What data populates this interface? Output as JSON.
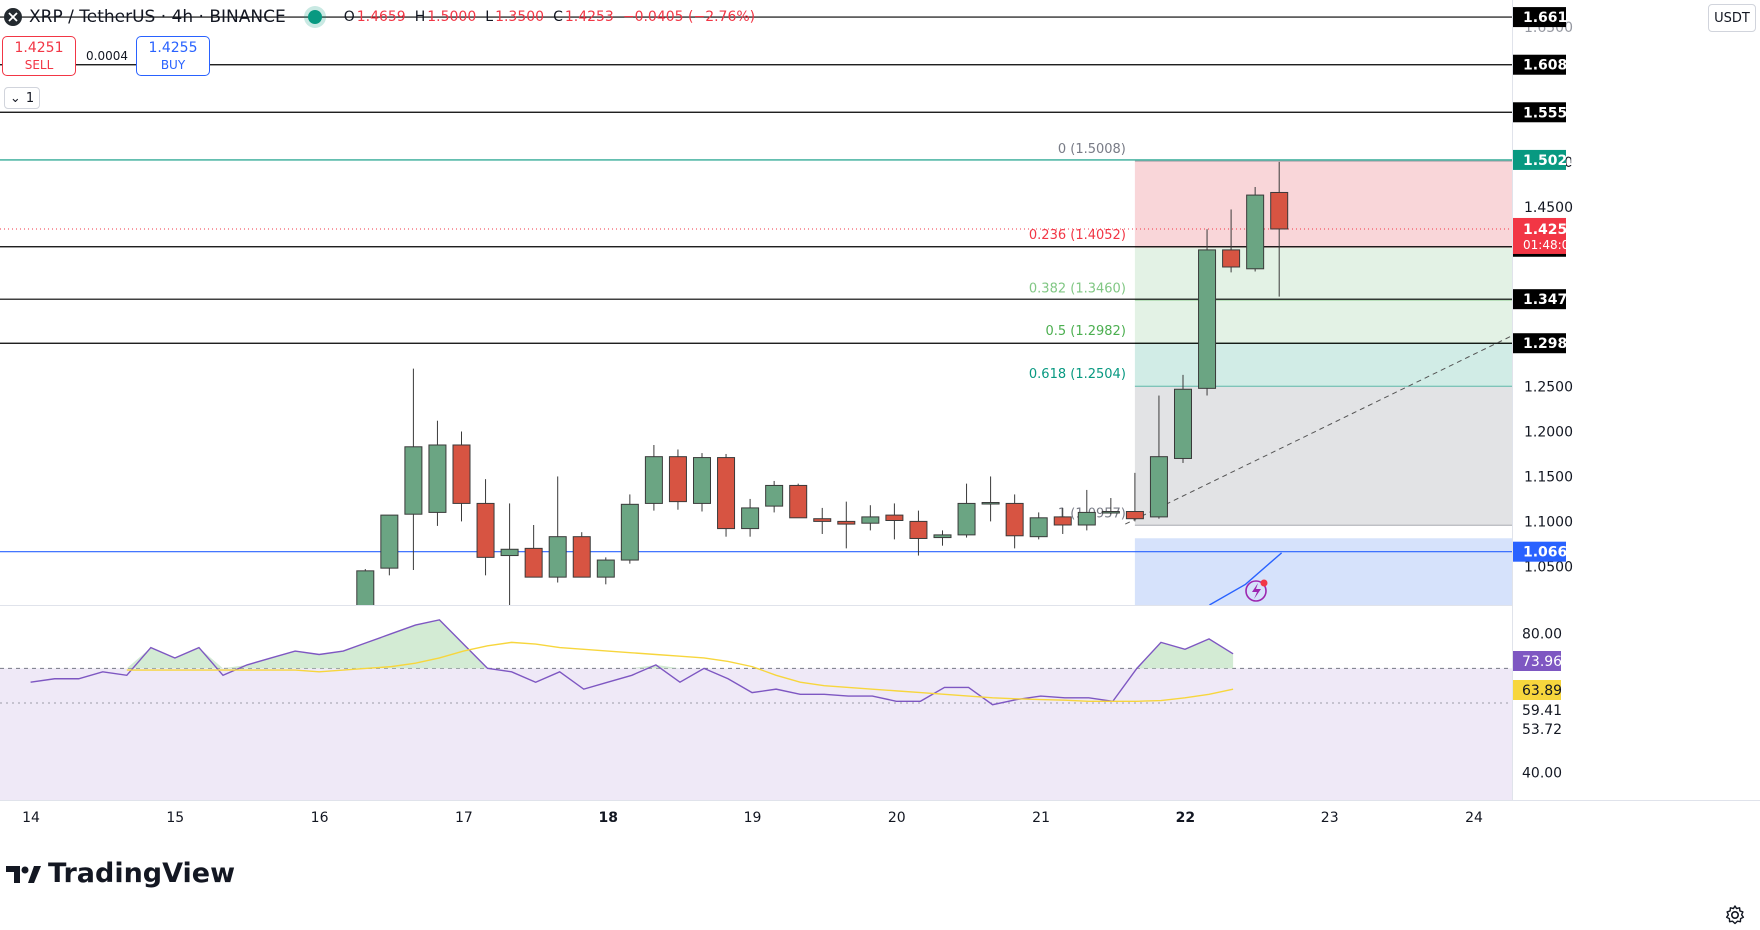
{
  "header": {
    "symbol": "XRP / TetherUS · 4h · BINANCE",
    "ohlc": [
      {
        "k": "O",
        "v": "1.4659"
      },
      {
        "k": "H",
        "v": "1.5000"
      },
      {
        "k": "L",
        "v": "1.3500"
      },
      {
        "k": "C",
        "v": "1.4253"
      },
      {
        "k": "",
        "v": "−0.0405 (−2.76%)"
      }
    ]
  },
  "trade": {
    "sell_price": "1.4251",
    "sell_label": "SELL",
    "buy_price": "1.4255",
    "buy_label": "BUY",
    "spread": "0.0004"
  },
  "indicators_toggle": "1",
  "currency": "USDT",
  "brand": "TradingView",
  "colors": {
    "up": "#6ba583",
    "down": "#d75442",
    "rsi": "#7e57c2",
    "rsi_ma": "#f7d63d",
    "fib_red": "#f9d6d9",
    "fib_green": "#e3f2e5",
    "fib_teal": "#d1ece6",
    "fib_grey": "#e2e3e5",
    "fib_blue": "#d6e2fb"
  },
  "chart_data": {
    "type": "candlestick",
    "instrument": "XRP / TetherUS",
    "interval": "4h",
    "x_labels": [
      {
        "label": "14",
        "x": 0.0
      },
      {
        "label": "15",
        "x": 6.0
      },
      {
        "label": "16",
        "x": 12.0
      },
      {
        "label": "17",
        "x": 18.0
      },
      {
        "label": "18",
        "x": 24.0
      },
      {
        "label": "19",
        "x": 30.0
      },
      {
        "label": "20",
        "x": 36.0
      },
      {
        "label": "21",
        "x": 42.0
      },
      {
        "label": "22",
        "x": 48.0
      },
      {
        "label": "23",
        "x": 54.0
      },
      {
        "label": "24",
        "x": 60.0
      }
    ],
    "bold_x_labels": [
      "18",
      "22"
    ],
    "price_axis": {
      "range": [
        1.007,
        1.68
      ],
      "ticks": [
        "1.0500",
        "1.1000",
        "1.1500",
        "1.2000",
        "1.2500",
        "1.4500",
        "1.5000"
      ],
      "hidden_ticks": [
        "1.6500"
      ]
    },
    "candles": [
      {
        "x": 13.9,
        "o": 1.005,
        "h": 1.047,
        "l": 1.0,
        "c": 1.045
      },
      {
        "x": 14.9,
        "o": 1.048,
        "h": 1.105,
        "l": 1.04,
        "c": 1.107
      },
      {
        "x": 15.9,
        "o": 1.108,
        "h": 1.27,
        "l": 1.046,
        "c": 1.183
      },
      {
        "x": 16.9,
        "o": 1.11,
        "h": 1.212,
        "l": 1.095,
        "c": 1.185
      },
      {
        "x": 17.9,
        "o": 1.185,
        "h": 1.2,
        "l": 1.1,
        "c": 1.12
      },
      {
        "x": 18.9,
        "o": 1.12,
        "h": 1.147,
        "l": 1.04,
        "c": 1.06
      },
      {
        "x": 19.9,
        "o": 1.062,
        "h": 1.12,
        "l": 1.0,
        "c": 1.069
      },
      {
        "x": 20.9,
        "o": 1.07,
        "h": 1.096,
        "l": 1.038,
        "c": 1.038
      },
      {
        "x": 21.9,
        "o": 1.038,
        "h": 1.15,
        "l": 1.032,
        "c": 1.083
      },
      {
        "x": 22.9,
        "o": 1.083,
        "h": 1.088,
        "l": 1.04,
        "c": 1.038
      },
      {
        "x": 23.9,
        "o": 1.038,
        "h": 1.06,
        "l": 1.03,
        "c": 1.057
      },
      {
        "x": 24.9,
        "o": 1.057,
        "h": 1.13,
        "l": 1.053,
        "c": 1.119
      },
      {
        "x": 25.9,
        "o": 1.12,
        "h": 1.185,
        "l": 1.112,
        "c": 1.172
      },
      {
        "x": 26.9,
        "o": 1.172,
        "h": 1.18,
        "l": 1.113,
        "c": 1.122
      },
      {
        "x": 27.9,
        "o": 1.12,
        "h": 1.176,
        "l": 1.111,
        "c": 1.171
      },
      {
        "x": 28.9,
        "o": 1.171,
        "h": 1.175,
        "l": 1.083,
        "c": 1.092
      },
      {
        "x": 29.9,
        "o": 1.092,
        "h": 1.125,
        "l": 1.083,
        "c": 1.115
      },
      {
        "x": 30.9,
        "o": 1.117,
        "h": 1.145,
        "l": 1.11,
        "c": 1.14
      },
      {
        "x": 31.9,
        "o": 1.14,
        "h": 1.142,
        "l": 1.104,
        "c": 1.104
      },
      {
        "x": 32.9,
        "o": 1.103,
        "h": 1.115,
        "l": 1.086,
        "c": 1.1
      },
      {
        "x": 33.9,
        "o": 1.1,
        "h": 1.122,
        "l": 1.07,
        "c": 1.097
      },
      {
        "x": 34.9,
        "o": 1.098,
        "h": 1.118,
        "l": 1.09,
        "c": 1.105
      },
      {
        "x": 35.9,
        "o": 1.107,
        "h": 1.12,
        "l": 1.08,
        "c": 1.101
      },
      {
        "x": 36.9,
        "o": 1.1,
        "h": 1.112,
        "l": 1.062,
        "c": 1.081
      },
      {
        "x": 37.9,
        "o": 1.082,
        "h": 1.09,
        "l": 1.073,
        "c": 1.085
      },
      {
        "x": 38.9,
        "o": 1.085,
        "h": 1.142,
        "l": 1.082,
        "c": 1.12
      },
      {
        "x": 39.9,
        "o": 1.12,
        "h": 1.15,
        "l": 1.1,
        "c": 1.121
      },
      {
        "x": 40.9,
        "o": 1.12,
        "h": 1.13,
        "l": 1.07,
        "c": 1.084
      },
      {
        "x": 41.9,
        "o": 1.083,
        "h": 1.11,
        "l": 1.08,
        "c": 1.104
      },
      {
        "x": 42.9,
        "o": 1.105,
        "h": 1.115,
        "l": 1.086,
        "c": 1.096
      },
      {
        "x": 43.9,
        "o": 1.096,
        "h": 1.135,
        "l": 1.09,
        "c": 1.11
      },
      {
        "x": 44.9,
        "o": 1.11,
        "h": 1.126,
        "l": 1.108,
        "c": 1.111
      },
      {
        "x": 45.9,
        "o": 1.111,
        "h": 1.154,
        "l": 1.1,
        "c": 1.103
      },
      {
        "x": 46.9,
        "o": 1.105,
        "h": 1.24,
        "l": 1.103,
        "c": 1.172
      },
      {
        "x": 47.9,
        "o": 1.17,
        "h": 1.263,
        "l": 1.165,
        "c": 1.247
      },
      {
        "x": 48.9,
        "o": 1.248,
        "h": 1.425,
        "l": 1.24,
        "c": 1.402
      },
      {
        "x": 49.9,
        "o": 1.402,
        "h": 1.447,
        "l": 1.377,
        "c": 1.383
      },
      {
        "x": 50.9,
        "o": 1.381,
        "h": 1.472,
        "l": 1.378,
        "c": 1.463
      },
      {
        "x": 51.9,
        "o": 1.4659,
        "h": 1.5,
        "l": 1.35,
        "c": 1.4253
      }
    ],
    "horizontal_levels": [
      {
        "price": 1.661,
        "label": "1.6610",
        "color": "#000000"
      },
      {
        "price": 1.608,
        "label": "1.6080",
        "color": "#000000"
      },
      {
        "price": 1.5551,
        "label": "1.5551",
        "color": "#000000"
      },
      {
        "price": 1.5021,
        "label": "1.5021",
        "color": "#089981"
      },
      {
        "price": 1.4055,
        "label": "1.4055",
        "color": "#000000"
      },
      {
        "price": 1.3472,
        "label": "1.3472",
        "color": "#000000"
      },
      {
        "price": 1.2982,
        "label": "1.2982",
        "color": "#000000"
      },
      {
        "price": 1.0663,
        "label": "1.0663",
        "color": "#2962ff"
      }
    ],
    "current_price": {
      "price": 1.4253,
      "label": "1.4253",
      "countdown": "01:48:0"
    },
    "fibonacci": {
      "x_start": 45.9,
      "levels": [
        {
          "ratio": "0",
          "price": 1.5008,
          "label": "0 (1.5008)",
          "color": "#787b86",
          "fill": "#f9d6d9"
        },
        {
          "ratio": "0.236",
          "price": 1.4052,
          "label": "0.236 (1.4052)",
          "color": "#f23645",
          "fill": "#e3f2e5"
        },
        {
          "ratio": "0.382",
          "price": 1.346,
          "label": "0.382 (1.3460)",
          "color": "#81c784",
          "fill": "#e3f2e5"
        },
        {
          "ratio": "0.5",
          "price": 1.2982,
          "label": "0.5 (1.2982)",
          "color": "#4caf50",
          "fill": "#d1ece6"
        },
        {
          "ratio": "0.618",
          "price": 1.2504,
          "label": "0.618 (1.2504)",
          "color": "#089981",
          "fill": "#e2e3e5"
        },
        {
          "ratio": "1",
          "price": 1.0957,
          "label": "1 (1.0957)",
          "color": "#787b86",
          "fill": "#d6e2fb"
        }
      ]
    },
    "trend_line": {
      "points": [
        [
          45.5,
          1.097
        ],
        [
          62.0,
          1.312
        ]
      ]
    },
    "ma_line": {
      "points": [
        [
          49.0,
          1.007
        ],
        [
          50.5,
          1.03
        ],
        [
          52.0,
          1.065
        ]
      ]
    },
    "rsi": {
      "range": [
        32.0,
        88.0
      ],
      "ticks": [
        "80.00",
        "40.00"
      ],
      "bands": [
        70.0,
        30.0
      ],
      "lines": [
        60.0
      ],
      "label_values": [
        {
          "label": "73.96",
          "value": 73.96,
          "bg": "#7e57c2"
        },
        {
          "label": "63.89",
          "value": 63.89,
          "bg": "#f7d63d"
        },
        {
          "label": "59.41",
          "value": 59.41,
          "bg": ""
        },
        {
          "label": "53.72",
          "value": 53.72,
          "bg": ""
        }
      ],
      "rsi_values": [
        66.0,
        67.0,
        67.0,
        69.0,
        68.0,
        76.0,
        73.0,
        76.0,
        68.0,
        71.0,
        73.0,
        75.0,
        74.0,
        75.0,
        77.5,
        80.0,
        82.5,
        84.0,
        77.0,
        70.0,
        69.0,
        66.0,
        69.0,
        64.0,
        66.0,
        68.0,
        71.0,
        66.0,
        70.0,
        67.0,
        63.0,
        64.0,
        62.5,
        62.5,
        62.0,
        62.0,
        60.5,
        60.5,
        64.5,
        64.5,
        59.5,
        61.0,
        62.0,
        61.5,
        61.5,
        60.5,
        70.0,
        77.5,
        75.5,
        78.5,
        74.2
      ],
      "rsi_ma_values": [
        69.5,
        69.5,
        69.5,
        69.5,
        69.5,
        69.5,
        69.5,
        69.5,
        69.0,
        69.5,
        70.0,
        70.5,
        71.5,
        73.0,
        75.0,
        76.5,
        77.5,
        77.0,
        76.0,
        75.5,
        75.0,
        74.5,
        74.0,
        73.5,
        73.0,
        72.0,
        70.5,
        68.0,
        66.0,
        65.0,
        64.5,
        64.0,
        63.5,
        63.0,
        62.5,
        62.0,
        61.5,
        61.2,
        61.0,
        60.8,
        60.5,
        60.5,
        60.5,
        60.7,
        61.5,
        62.5,
        64.0
      ]
    }
  }
}
